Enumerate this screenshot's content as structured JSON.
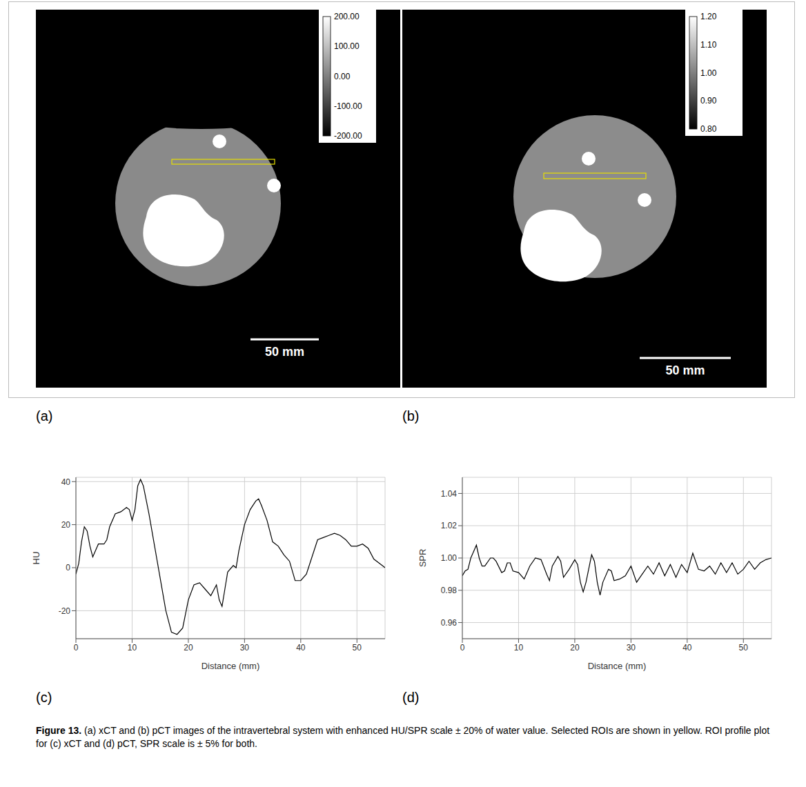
{
  "panel_letters": [
    "(a)",
    "(b)",
    "(c)",
    "(d)"
  ],
  "images": [
    {
      "colorbar": {
        "range": [
          -200,
          200
        ],
        "ticks": [
          {
            "value": 200,
            "label": "200.00"
          },
          {
            "value": 100,
            "label": "100.00"
          },
          {
            "value": 0,
            "label": "0.00"
          },
          {
            "value": -100,
            "label": "-100.00"
          },
          {
            "value": -200,
            "label": "-200.00"
          }
        ]
      },
      "scale_bar": "50 mm"
    },
    {
      "colorbar": {
        "range": [
          0.8,
          1.2
        ],
        "ticks": [
          {
            "value": 1.2,
            "label": "1.20"
          },
          {
            "value": 1.1,
            "label": "1.10"
          },
          {
            "value": 1,
            "label": "1.00"
          },
          {
            "value": 0.9,
            "label": "0.90"
          },
          {
            "value": 0.8,
            "label": "0.80"
          }
        ]
      },
      "scale_bar": "50 mm"
    }
  ],
  "chart_data": [
    {
      "type": "line",
      "x_label": "Distance (mm)",
      "y_label": "HU",
      "color": "#000000",
      "grid": true,
      "xlim": [
        0,
        55
      ],
      "xticks": [
        0,
        10,
        20,
        30,
        40,
        50
      ],
      "ylim": [
        -33,
        42
      ],
      "yticks": [
        -20,
        0,
        20,
        40
      ],
      "x": [
        0,
        0.5,
        1,
        1.5,
        2,
        2.5,
        3,
        3.5,
        4,
        5,
        5.5,
        6,
        7,
        8,
        9,
        9.5,
        10,
        10.5,
        11,
        11.5,
        12,
        13,
        14,
        15,
        16,
        17,
        18,
        19,
        20,
        21,
        22,
        23,
        24,
        25,
        25.5,
        26,
        26.5,
        27,
        28,
        28.5,
        29,
        30,
        31,
        32,
        32.5,
        33,
        34,
        35,
        36,
        37,
        38,
        39,
        40,
        41,
        42,
        43,
        44,
        45,
        46,
        47,
        48,
        49,
        50,
        51,
        52,
        53,
        54,
        55
      ],
      "values": [
        -3,
        2,
        12,
        19,
        17,
        10,
        5,
        8,
        11,
        11,
        13,
        19,
        25,
        26,
        28,
        27,
        22,
        27,
        38,
        41,
        38,
        25,
        10,
        -5,
        -20,
        -30,
        -31,
        -28,
        -15,
        -8,
        -7,
        -10,
        -13,
        -8,
        -15,
        -18,
        -10,
        -2,
        1,
        0,
        8,
        20,
        27,
        31,
        32,
        29,
        22,
        12,
        10,
        6,
        3,
        -6,
        -6,
        -3,
        5,
        13,
        14,
        15,
        16,
        15,
        13,
        10,
        10,
        11,
        9,
        4,
        2,
        0
      ]
    },
    {
      "type": "line",
      "x_label": "Distance (mm)",
      "y_label": "SPR",
      "color": "#000000",
      "grid": true,
      "xlim": [
        0,
        55
      ],
      "xticks": [
        0,
        10,
        20,
        30,
        40,
        50
      ],
      "ylim": [
        0.95,
        1.05
      ],
      "yticks": [
        0.96,
        0.98,
        {
          "value": 1,
          "label": "1.00"
        },
        1.02,
        1.04
      ],
      "x": [
        0,
        0.5,
        1,
        1.5,
        2,
        2.5,
        3,
        3.5,
        4,
        5,
        5.5,
        6,
        7,
        7.5,
        8,
        8.5,
        9,
        10,
        11,
        12,
        13,
        14,
        15,
        15.5,
        16,
        17,
        17.5,
        18,
        19,
        20,
        20.5,
        21,
        21.5,
        22,
        23,
        23.5,
        24,
        24.5,
        25,
        26,
        26.5,
        27,
        28,
        29,
        30,
        31,
        32,
        33,
        34,
        35,
        36,
        37,
        38,
        39,
        40,
        41,
        42,
        43,
        44,
        45,
        46,
        47,
        48,
        49,
        50,
        51,
        52,
        53,
        54,
        55
      ],
      "values": [
        0.989,
        0.992,
        0.993,
        1.0,
        1.004,
        1.008,
        1.0,
        0.995,
        0.995,
        1.0,
        1.0,
        0.998,
        0.991,
        0.992,
        0.997,
        0.997,
        0.992,
        0.991,
        0.987,
        0.995,
        1.0,
        0.999,
        0.99,
        0.986,
        0.995,
        1.001,
        0.998,
        0.988,
        0.993,
        0.999,
        0.996,
        0.985,
        0.979,
        0.985,
        1.002,
        0.998,
        0.985,
        0.977,
        0.985,
        0.993,
        0.992,
        0.986,
        0.987,
        0.989,
        0.995,
        0.985,
        0.99,
        0.995,
        0.99,
        0.997,
        0.989,
        0.996,
        0.988,
        0.996,
        0.991,
        1.003,
        0.993,
        0.992,
        0.995,
        0.99,
        0.997,
        0.991,
        0.997,
        0.99,
        0.993,
        0.998,
        0.993,
        0.997,
        0.999,
        1.0
      ]
    }
  ],
  "caption": {
    "label": "Figure 13.",
    "text": "(a) xCT and (b) pCT images of the intravertebral system with enhanced HU/SPR scale ± 20% of water value. Selected ROIs are shown in yellow. ROI profile plot for (c) xCT and (d) pCT, SPR scale is ± 5% for both."
  }
}
